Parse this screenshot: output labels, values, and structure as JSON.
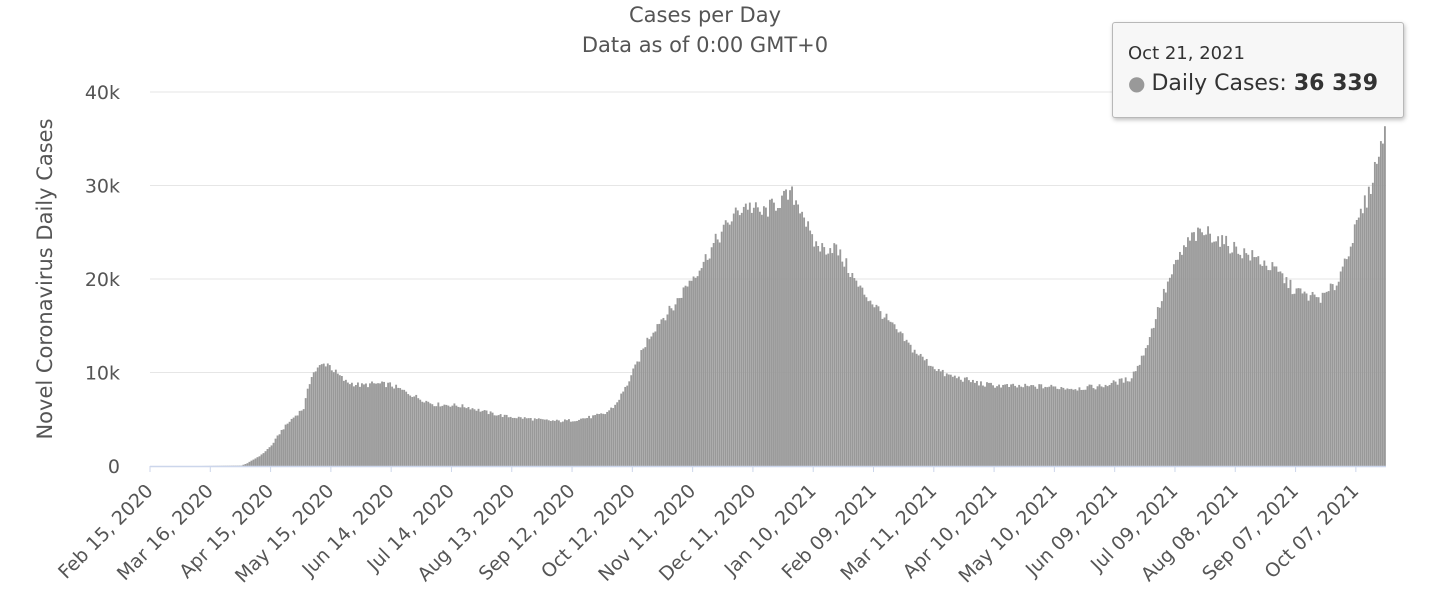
{
  "chart_data": {
    "type": "bar",
    "title": "Cases per Day",
    "subtitle": "Data as of 0:00 GMT+0",
    "ylabel": "Novel Coronavirus Daily Cases",
    "xlabel": "",
    "ylim": [
      0,
      40000
    ],
    "y_ticks": [
      0,
      10000,
      20000,
      30000,
      40000
    ],
    "y_tick_labels": [
      "0",
      "10k",
      "20k",
      "30k",
      "40k"
    ],
    "x_start": "2020-02-15",
    "x_end": "2021-10-21",
    "x_tick_labels": [
      "Feb 15, 2020",
      "Mar 16, 2020",
      "Apr 15, 2020",
      "May 15, 2020",
      "Jun 14, 2020",
      "Jul 14, 2020",
      "Aug 13, 2020",
      "Sep 12, 2020",
      "Oct 12, 2020",
      "Nov 11, 2020",
      "Dec 11, 2020",
      "Jan 10, 2021",
      "Feb 09, 2021",
      "Mar 11, 2021",
      "Apr 10, 2021",
      "May 10, 2021",
      "Jun 09, 2021",
      "Jul 09, 2021",
      "Aug 08, 2021",
      "Sep 07, 2021",
      "Oct 07, 2021"
    ],
    "bar_color": "#999999",
    "grid": true,
    "series": [
      {
        "name": "Daily Cases",
        "points": [
          [
            "2020-02-15",
            0
          ],
          [
            "2020-03-10",
            0
          ],
          [
            "2020-03-31",
            50
          ],
          [
            "2020-04-03",
            300
          ],
          [
            "2020-04-10",
            1200
          ],
          [
            "2020-04-15",
            2200
          ],
          [
            "2020-04-20",
            3800
          ],
          [
            "2020-04-25",
            5000
          ],
          [
            "2020-05-01",
            6200
          ],
          [
            "2020-05-05",
            9800
          ],
          [
            "2020-05-10",
            10800
          ],
          [
            "2020-05-13",
            11000
          ],
          [
            "2020-05-16",
            10200
          ],
          [
            "2020-05-22",
            9000
          ],
          [
            "2020-05-30",
            8600
          ],
          [
            "2020-06-05",
            8800
          ],
          [
            "2020-06-13",
            8700
          ],
          [
            "2020-06-20",
            8000
          ],
          [
            "2020-06-28",
            7200
          ],
          [
            "2020-07-05",
            6600
          ],
          [
            "2020-07-15",
            6500
          ],
          [
            "2020-07-22",
            6300
          ],
          [
            "2020-08-01",
            5700
          ],
          [
            "2020-08-10",
            5300
          ],
          [
            "2020-08-20",
            5100
          ],
          [
            "2020-08-28",
            4900
          ],
          [
            "2020-09-05",
            4800
          ],
          [
            "2020-09-12",
            4900
          ],
          [
            "2020-09-20",
            5200
          ],
          [
            "2020-09-28",
            5600
          ],
          [
            "2020-10-03",
            6500
          ],
          [
            "2020-10-08",
            8300
          ],
          [
            "2020-10-14",
            11000
          ],
          [
            "2020-10-19",
            13500
          ],
          [
            "2020-10-25",
            15500
          ],
          [
            "2020-11-01",
            17000
          ],
          [
            "2020-11-08",
            19500
          ],
          [
            "2020-11-15",
            21500
          ],
          [
            "2020-11-22",
            24000
          ],
          [
            "2020-11-30",
            26500
          ],
          [
            "2020-12-07",
            28000
          ],
          [
            "2020-12-15",
            27000
          ],
          [
            "2020-12-25",
            28500
          ],
          [
            "2020-12-30",
            29000
          ],
          [
            "2021-01-04",
            27500
          ],
          [
            "2021-01-09",
            24000
          ],
          [
            "2021-01-15",
            23200
          ],
          [
            "2021-01-20",
            23500
          ],
          [
            "2021-01-26",
            21500
          ],
          [
            "2021-02-01",
            19200
          ],
          [
            "2021-02-06",
            18000
          ],
          [
            "2021-02-12",
            16500
          ],
          [
            "2021-02-20",
            14500
          ],
          [
            "2021-02-28",
            12500
          ],
          [
            "2021-03-08",
            11000
          ],
          [
            "2021-03-16",
            9800
          ],
          [
            "2021-03-25",
            9300
          ],
          [
            "2021-04-05",
            8700
          ],
          [
            "2021-04-20",
            8500
          ],
          [
            "2021-05-05",
            8500
          ],
          [
            "2021-05-20",
            8300
          ],
          [
            "2021-06-01",
            8500
          ],
          [
            "2021-06-10",
            9000
          ],
          [
            "2021-06-16",
            9300
          ],
          [
            "2021-06-21",
            11000
          ],
          [
            "2021-06-26",
            13800
          ],
          [
            "2021-07-01",
            17300
          ],
          [
            "2021-07-06",
            20000
          ],
          [
            "2021-07-11",
            22500
          ],
          [
            "2021-07-17",
            24500
          ],
          [
            "2021-07-25",
            25000
          ],
          [
            "2021-08-01",
            24000
          ],
          [
            "2021-08-10",
            23000
          ],
          [
            "2021-08-20",
            22000
          ],
          [
            "2021-08-30",
            20500
          ],
          [
            "2021-09-05",
            19000
          ],
          [
            "2021-09-12",
            18200
          ],
          [
            "2021-09-20",
            18000
          ],
          [
            "2021-09-27",
            19500
          ],
          [
            "2021-10-01",
            22000
          ],
          [
            "2021-10-06",
            25000
          ],
          [
            "2021-10-10",
            27500
          ],
          [
            "2021-10-13",
            29000
          ],
          [
            "2021-10-16",
            32000
          ],
          [
            "2021-10-19",
            34000
          ],
          [
            "2021-10-21",
            36339
          ]
        ]
      }
    ],
    "tooltip": {
      "date": "Oct 21, 2021",
      "label": "Daily Cases:",
      "value": "36 339"
    }
  }
}
